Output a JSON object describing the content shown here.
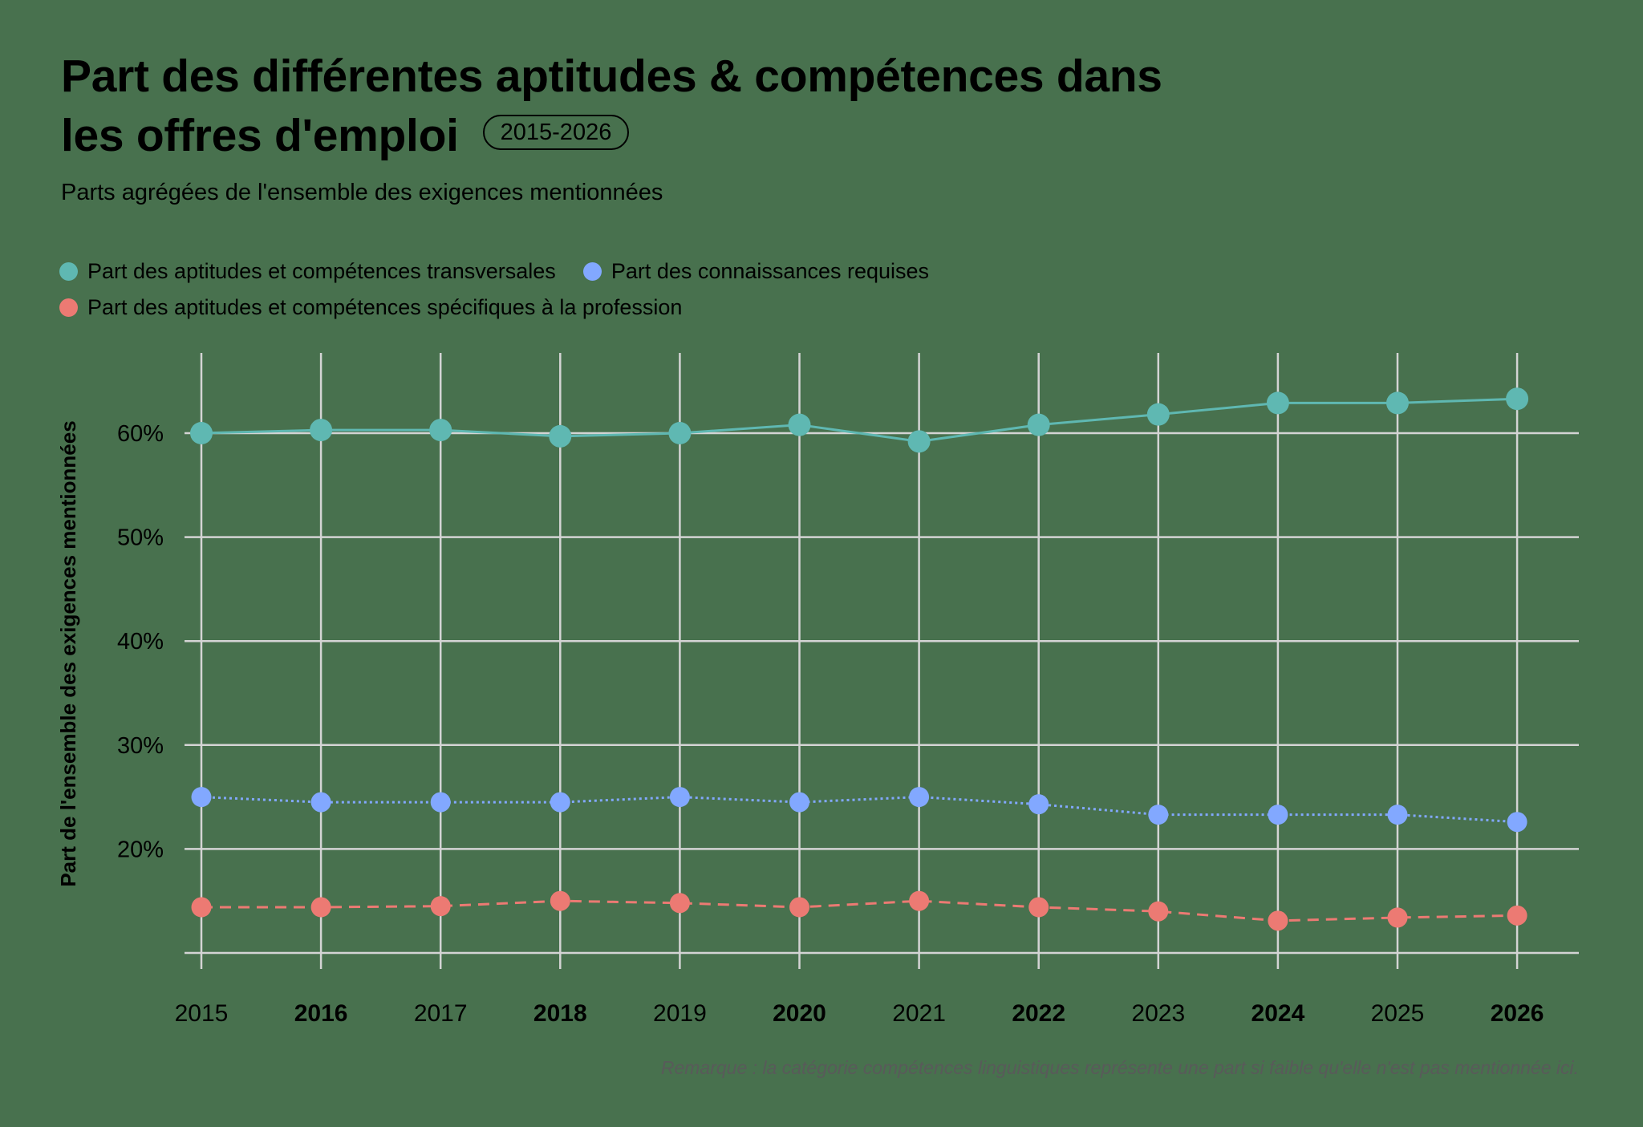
{
  "header": {
    "title_line1": "Part des différentes aptitudes & compétences dans",
    "title_line2": "les offres d'emploi",
    "badge": "2015-2026",
    "subtitle": "Parts agrégées de l'ensemble des exigences mentionnées"
  },
  "legend": [
    {
      "label": "Part des aptitudes et compétences transversales",
      "color": "#5fb8b2"
    },
    {
      "label": "Part des connaissances requises",
      "color": "#82a8ff"
    },
    {
      "label": "Part des aptitudes et compétences spécifiques à la profession",
      "color": "#ec7a73"
    }
  ],
  "footnote": "Remarque : la catégorie compétences linguistiques représente une part si faible qu'elle n'est pas mentionnée ici.",
  "colors": {
    "background": "#48714e",
    "grid": "#d4d4d4",
    "text": "#000000",
    "footnote": "#595a5a"
  },
  "chart_data": {
    "type": "line",
    "title": "Part des différentes aptitudes & compétences dans les offres d'emploi",
    "subtitle": "Parts agrégées de l'ensemble des exigences mentionnées",
    "badge": "2015-2026",
    "xlabel": "",
    "ylabel": "Part de l'ensemble des exigences mentionnées",
    "categories": [
      "2015",
      "2016",
      "2017",
      "2018",
      "2019",
      "2020",
      "2021",
      "2022",
      "2023",
      "2024",
      "2025",
      "2026"
    ],
    "bold_categories": [
      "2016",
      "2018",
      "2020",
      "2022",
      "2024",
      "2026"
    ],
    "yticks": [
      20,
      30,
      40,
      50,
      60
    ],
    "ytick_labels": [
      "20%",
      "30%",
      "40%",
      "50%",
      "60%"
    ],
    "ylim": [
      10,
      67
    ],
    "grid": true,
    "legend_position": "top-left",
    "series": [
      {
        "name": "Part des aptitudes et compétences transversales",
        "color": "#5fb8b2",
        "line_style": "solid",
        "values": [
          60.0,
          60.3,
          60.3,
          59.7,
          60.0,
          60.8,
          59.2,
          60.8,
          61.8,
          62.9,
          62.9,
          63.3
        ]
      },
      {
        "name": "Part des connaissances requises",
        "color": "#82a8ff",
        "line_style": "dotted",
        "values": [
          25.0,
          24.5,
          24.5,
          24.5,
          25.0,
          24.5,
          25.0,
          24.3,
          23.3,
          23.3,
          23.3,
          22.6
        ]
      },
      {
        "name": "Part des aptitudes et compétences spécifiques à la profession",
        "color": "#ec7a73",
        "line_style": "dashed",
        "values": [
          14.4,
          14.4,
          14.5,
          15.0,
          14.8,
          14.4,
          15.0,
          14.4,
          14.0,
          13.1,
          13.4,
          13.6
        ]
      }
    ],
    "footnote": "Remarque : la catégorie compétences linguistiques représente une part si faible qu'elle n'est pas mentionnée ici."
  }
}
